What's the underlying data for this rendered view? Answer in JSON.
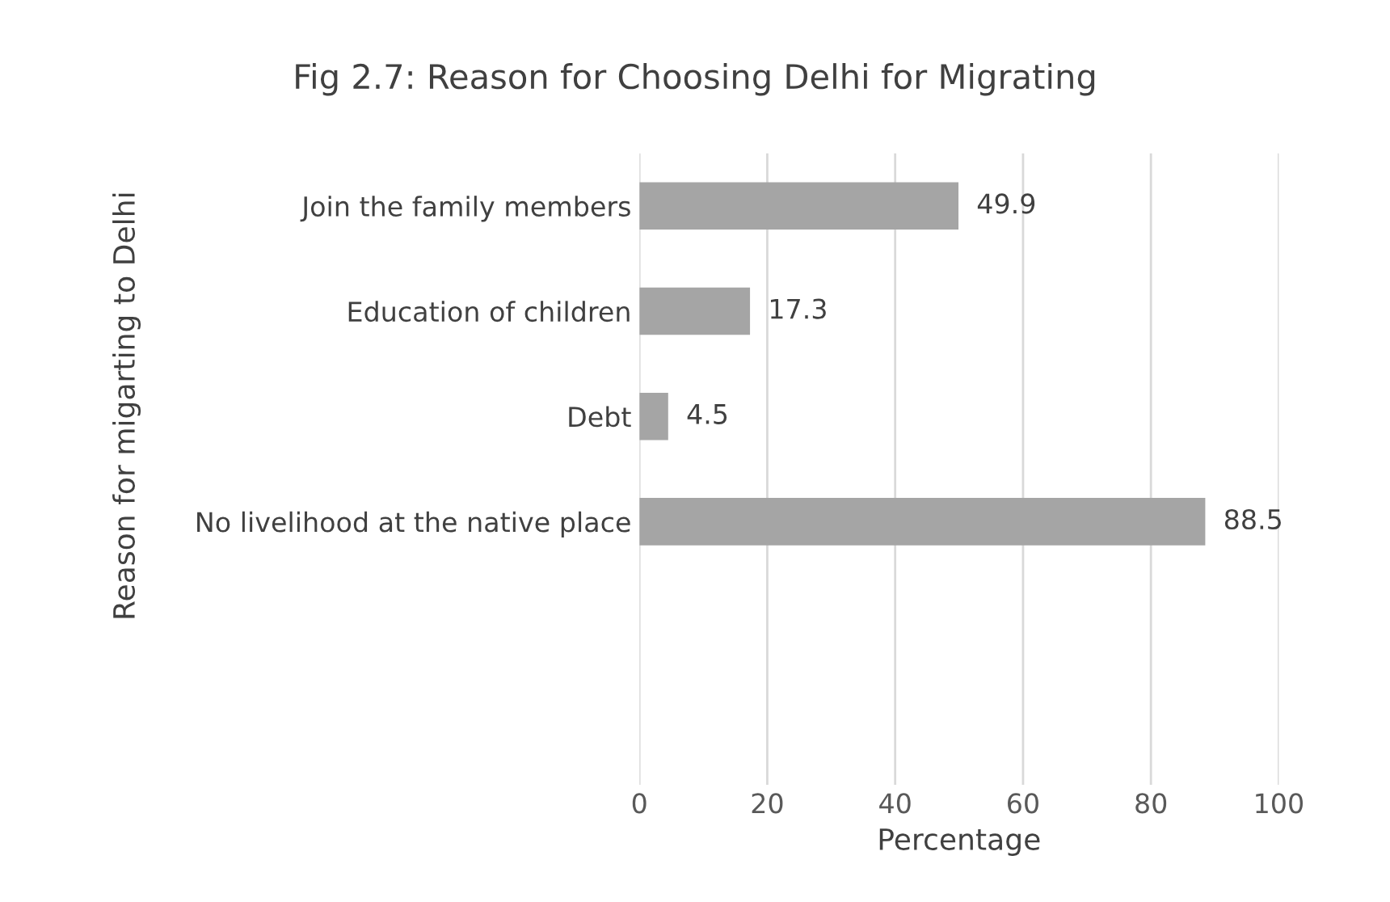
{
  "chart_data": {
    "type": "bar",
    "orientation": "horizontal",
    "title": "Fig 2.7: Reason for Choosing Delhi for Migrating",
    "xlabel": "Percentage",
    "ylabel": "Reason for migarting to Delhi",
    "categories": [
      "Join the family members",
      "Education of children",
      "Debt",
      "No livelihood at the native place",
      null,
      null
    ],
    "values": [
      49.9,
      17.3,
      4.5,
      88.5,
      null,
      null
    ],
    "color": "#a5a5a5",
    "data_labels": true,
    "xlim": [
      0,
      100
    ],
    "xticks": [
      0,
      20,
      40,
      60,
      80,
      100
    ],
    "grid": "x",
    "legend": false
  }
}
